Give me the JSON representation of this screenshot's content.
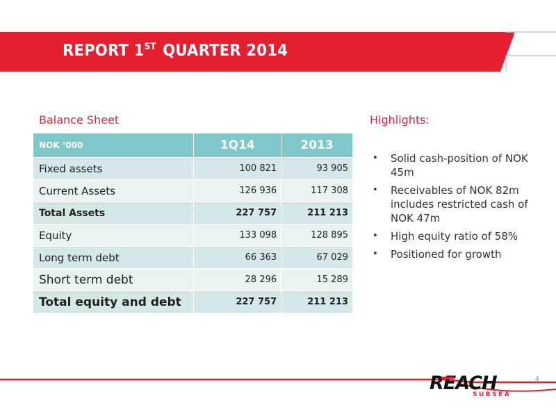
{
  "header": {
    "title_prefix": "REPORT 1",
    "title_sup": "ST",
    "title_suffix": "QUARTER 2014"
  },
  "balance_sheet": {
    "label": "Balance Sheet",
    "columns": [
      "NOK ‘000",
      "1Q14",
      "2013"
    ],
    "rows": [
      {
        "label": "Fixed assets",
        "q1": "100 821",
        "y2013": "93 905"
      },
      {
        "label": "Current Assets",
        "q1": "126 936",
        "y2013": "117 308"
      },
      {
        "label": "Total Assets",
        "q1": "227 757",
        "y2013": "211 213"
      },
      {
        "label": "Equity",
        "q1": "133 098",
        "y2013": "128 895"
      },
      {
        "label": "Long term debt",
        "q1": "66 363",
        "y2013": "67 029"
      },
      {
        "label": "Short term debt",
        "q1": "28 296",
        "y2013": "15 289"
      },
      {
        "label": "Total equity and debt",
        "q1": "227 757",
        "y2013": "211 213"
      }
    ]
  },
  "highlights": {
    "label": "Highlights:",
    "items": [
      "Solid cash-position of NOK 45m",
      "Receivables of NOK 82m includes restricted cash of NOK 47m",
      "High equity ratio of 58%",
      "Positioned for growth"
    ],
    "bullet": "•"
  },
  "footer": {
    "logo_text": "REACH",
    "logo_sub": "SUBSEA",
    "page_number": "4"
  },
  "colors": {
    "brand_red": "#d7263d",
    "table_header": "#7fc7c9",
    "row_dark": "#d4e8ea",
    "row_light": "#eaf3f4"
  }
}
